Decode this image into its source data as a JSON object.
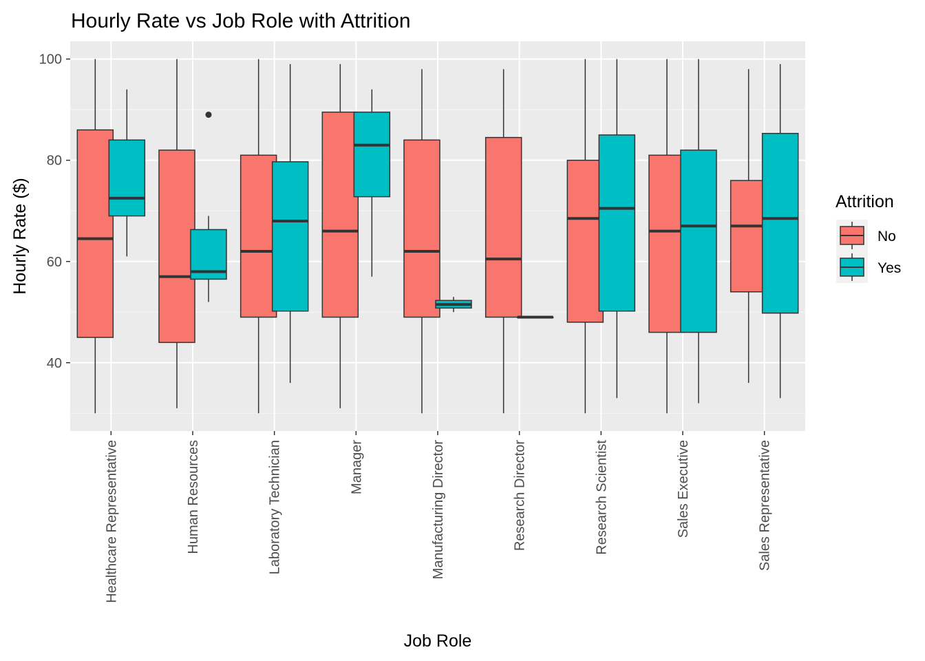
{
  "chart_data": {
    "type": "boxplot",
    "title": "Hourly Rate vs Job Role with Attrition",
    "xlabel": "Job Role",
    "ylabel": "Hourly Rate ($)",
    "ylim": [
      26.5,
      103.5
    ],
    "yticks": [
      40,
      60,
      80,
      100
    ],
    "grid": true,
    "legend": {
      "title": "Attrition",
      "position": "right"
    },
    "categories": [
      "Healthcare Representative",
      "Human Resources",
      "Laboratory Technician",
      "Manager",
      "Manufacturing Director",
      "Research Director",
      "Research Scientist",
      "Sales Executive",
      "Sales Representative"
    ],
    "series": [
      {
        "name": "No",
        "color": "#F8766D",
        "boxes": [
          {
            "min": 30,
            "q1": 45,
            "median": 64.5,
            "q3": 86,
            "max": 100,
            "outliers": []
          },
          {
            "min": 31,
            "q1": 44,
            "median": 57,
            "q3": 82,
            "max": 100,
            "outliers": []
          },
          {
            "min": 30,
            "q1": 49,
            "median": 62,
            "q3": 81,
            "max": 100,
            "outliers": []
          },
          {
            "min": 31,
            "q1": 49,
            "median": 66,
            "q3": 89.5,
            "max": 99,
            "outliers": []
          },
          {
            "min": 30,
            "q1": 49,
            "median": 62,
            "q3": 84,
            "max": 98,
            "outliers": []
          },
          {
            "min": 30,
            "q1": 49,
            "median": 60.5,
            "q3": 84.5,
            "max": 98,
            "outliers": []
          },
          {
            "min": 30,
            "q1": 48,
            "median": 68.5,
            "q3": 80,
            "max": 100,
            "outliers": []
          },
          {
            "min": 30,
            "q1": 46,
            "median": 66,
            "q3": 81,
            "max": 100,
            "outliers": []
          },
          {
            "min": 36,
            "q1": 54,
            "median": 67,
            "q3": 76,
            "max": 98,
            "outliers": []
          }
        ]
      },
      {
        "name": "Yes",
        "color": "#00BFC4",
        "boxes": [
          {
            "min": 61,
            "q1": 69,
            "median": 72.5,
            "q3": 84,
            "max": 94,
            "outliers": []
          },
          {
            "min": 52,
            "q1": 56.5,
            "median": 58,
            "q3": 66.3,
            "max": 69,
            "outliers": [
              89
            ]
          },
          {
            "min": 36,
            "q1": 50.2,
            "median": 68,
            "q3": 79.7,
            "max": 99,
            "outliers": []
          },
          {
            "min": 57,
            "q1": 72.8,
            "median": 83,
            "q3": 89.5,
            "max": 94,
            "outliers": []
          },
          {
            "min": 50,
            "q1": 50.8,
            "median": 51.5,
            "q3": 52.3,
            "max": 53,
            "outliers": []
          },
          {
            "min": 49,
            "q1": 49,
            "median": 49,
            "q3": 49,
            "max": 49,
            "outliers": []
          },
          {
            "min": 33,
            "q1": 50.2,
            "median": 70.5,
            "q3": 85,
            "max": 100,
            "outliers": []
          },
          {
            "min": 32,
            "q1": 46,
            "median": 67,
            "q3": 82,
            "max": 100,
            "outliers": []
          },
          {
            "min": 33,
            "q1": 49.8,
            "median": 68.5,
            "q3": 85.3,
            "max": 99,
            "outliers": []
          }
        ]
      }
    ]
  }
}
